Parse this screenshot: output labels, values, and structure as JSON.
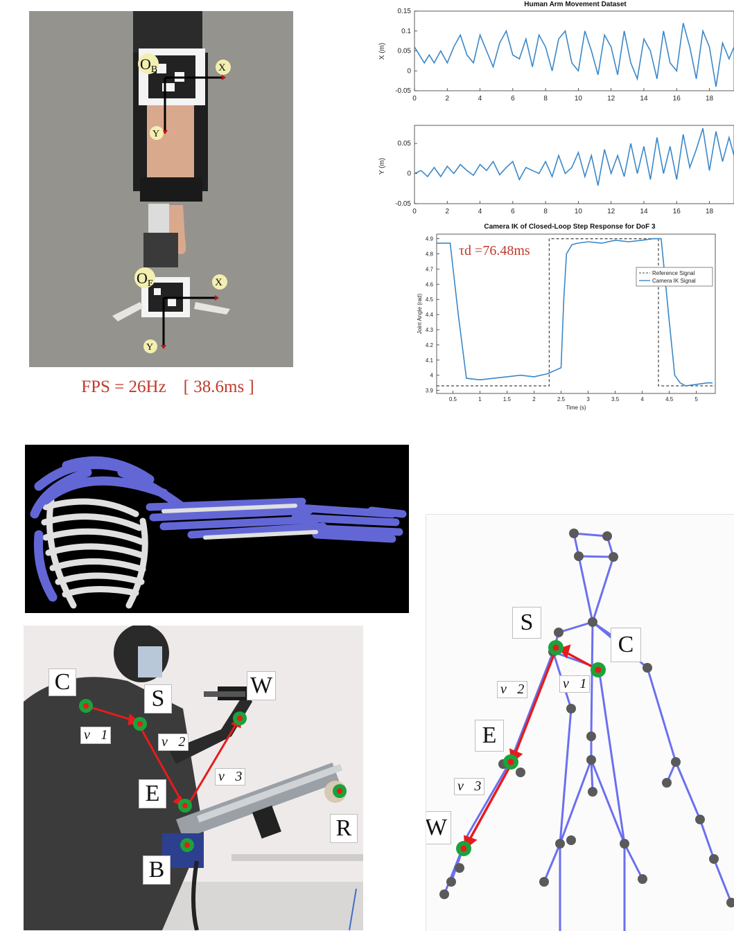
{
  "tracking_photo": {
    "labels": {
      "origin_b": "O",
      "origin_b_sub": "B",
      "origin_e": "O",
      "origin_e_sub": "E",
      "x_axis": "X",
      "y_axis": "Y"
    },
    "fps_caption": "FPS = 26Hz    [ 38.6ms ]"
  },
  "dataset_chart": {
    "title": "Human Arm Movement Dataset",
    "x_ticks": [
      "0",
      "2",
      "4",
      "6",
      "8",
      "10",
      "12",
      "14",
      "16",
      "18"
    ],
    "x_plot": {
      "ylabel": "X (m)",
      "y_ticks": [
        "0.15",
        "0.1",
        "0.05",
        "0",
        "-0.05"
      ]
    },
    "y_plot": {
      "ylabel": "Y (m)",
      "y_ticks": [
        "0.05",
        "0",
        "-0.05"
      ]
    }
  },
  "step_chart": {
    "title": "Camera IK of Closed-Loop Step Response for DoF 3",
    "ylabel": "Joint Angle (rad)",
    "xlabel": "Time (s)",
    "y_ticks": [
      "4.9",
      "4.8",
      "4.7",
      "4.6",
      "4.5",
      "4.4",
      "4.3",
      "4.2",
      "4.1",
      "4",
      "3.9"
    ],
    "x_ticks": [
      "0.5",
      "1",
      "1.5",
      "2",
      "2.5",
      "3",
      "3.5",
      "4",
      "4.5",
      "5"
    ],
    "annotation": "τd =76.48ms",
    "legend": [
      "Reference Signal",
      "Camera IK Signal"
    ]
  },
  "chart_data": [
    {
      "type": "line",
      "title": "Human Arm Movement Dataset",
      "xlabel": "",
      "ylabel": "X (m)",
      "xlim": [
        0,
        19.5
      ],
      "ylim": [
        -0.05,
        0.15
      ],
      "series": [
        {
          "x": [
            0,
            0.3,
            0.6,
            0.9,
            1.2,
            1.6,
            2.0,
            2.4,
            2.8,
            3.2,
            3.6,
            4.0,
            4.4,
            4.8,
            5.2,
            5.6,
            6.0,
            6.4,
            6.8,
            7.2,
            7.6,
            8.0,
            8.4,
            8.8,
            9.2,
            9.6,
            10.0,
            10.4,
            10.8,
            11.2,
            11.6,
            12.0,
            12.4,
            12.8,
            13.2,
            13.6,
            14.0,
            14.4,
            14.8,
            15.2,
            15.6,
            16.0,
            16.4,
            16.8,
            17.2,
            17.6,
            18.0,
            18.4,
            18.8,
            19.2,
            19.5
          ],
          "values": [
            0.06,
            0.04,
            0.02,
            0.04,
            0.02,
            0.05,
            0.02,
            0.06,
            0.09,
            0.04,
            0.02,
            0.09,
            0.05,
            0.01,
            0.07,
            0.1,
            0.04,
            0.03,
            0.08,
            0.01,
            0.09,
            0.06,
            0.0,
            0.08,
            0.1,
            0.02,
            0.0,
            0.1,
            0.05,
            -0.01,
            0.09,
            0.06,
            -0.01,
            0.1,
            0.02,
            -0.02,
            0.08,
            0.05,
            -0.02,
            0.1,
            0.02,
            0.0,
            0.12,
            0.06,
            -0.02,
            0.1,
            0.06,
            -0.04,
            0.07,
            0.03,
            0.06
          ]
        }
      ]
    },
    {
      "type": "line",
      "title": "",
      "xlabel": "",
      "ylabel": "Y (m)",
      "xlim": [
        0,
        19.5
      ],
      "ylim": [
        -0.05,
        0.08
      ],
      "series": [
        {
          "x": [
            0,
            0.4,
            0.8,
            1.2,
            1.6,
            2.0,
            2.4,
            2.8,
            3.2,
            3.6,
            4.0,
            4.4,
            4.8,
            5.2,
            5.6,
            6.0,
            6.4,
            6.8,
            7.2,
            7.6,
            8.0,
            8.4,
            8.8,
            9.2,
            9.6,
            10.0,
            10.4,
            10.8,
            11.2,
            11.6,
            12.0,
            12.4,
            12.8,
            13.2,
            13.6,
            14.0,
            14.4,
            14.8,
            15.2,
            15.6,
            16.0,
            16.4,
            16.8,
            17.2,
            17.6,
            18.0,
            18.4,
            18.8,
            19.2,
            19.5
          ],
          "values": [
            0.0,
            0.005,
            -0.005,
            0.01,
            -0.005,
            0.012,
            0.0,
            0.015,
            0.005,
            -0.003,
            0.015,
            0.005,
            0.02,
            -0.002,
            0.01,
            0.02,
            -0.01,
            0.01,
            0.005,
            0.0,
            0.02,
            -0.005,
            0.03,
            0.0,
            0.01,
            0.035,
            -0.005,
            0.03,
            -0.02,
            0.04,
            0.0,
            0.03,
            -0.005,
            0.05,
            0.0,
            0.045,
            -0.01,
            0.06,
            0.0,
            0.045,
            -0.01,
            0.065,
            0.01,
            0.04,
            0.075,
            0.005,
            0.07,
            0.02,
            0.06,
            0.03
          ]
        }
      ]
    },
    {
      "type": "line",
      "title": "Camera IK of Closed-Loop Step Response for DoF 3",
      "xlabel": "Time (s)",
      "ylabel": "Joint Angle (rad)",
      "xlim": [
        0.2,
        5.35
      ],
      "ylim": [
        3.88,
        4.93
      ],
      "series": [
        {
          "name": "Reference Signal",
          "x": [
            0.2,
            2.28,
            2.28,
            4.3,
            4.3,
            5.35
          ],
          "values": [
            3.93,
            3.93,
            4.9,
            4.9,
            3.93,
            3.93
          ]
        },
        {
          "name": "Camera IK Signal",
          "x": [
            0.2,
            0.35,
            0.36,
            0.45,
            0.6,
            0.75,
            1.0,
            1.25,
            1.5,
            1.75,
            2.0,
            2.25,
            2.5,
            2.55,
            2.6,
            2.7,
            2.8,
            3.0,
            3.25,
            3.5,
            3.75,
            4.0,
            4.2,
            4.35,
            4.5,
            4.6,
            4.7,
            4.8,
            5.0,
            5.2,
            5.3
          ],
          "values": [
            4.87,
            4.87,
            4.87,
            4.87,
            4.4,
            3.98,
            3.97,
            3.98,
            3.99,
            4.0,
            3.99,
            4.01,
            4.05,
            4.5,
            4.8,
            4.86,
            4.87,
            4.88,
            4.87,
            4.89,
            4.88,
            4.89,
            4.9,
            4.9,
            4.35,
            4.0,
            3.95,
            3.93,
            3.94,
            3.95,
            3.95
          ]
        }
      ]
    }
  ],
  "musculoskeletal_model": {},
  "robot_photo": {
    "labels": {
      "c": "C",
      "s": "S",
      "w": "W",
      "e": "E",
      "r": "R",
      "b": "B",
      "v1": "v⃗1",
      "v2": "v⃗2",
      "v3": "v⃗3"
    }
  },
  "skeleton_panel": {
    "labels": {
      "s": "S",
      "c": "C",
      "e": "E",
      "w": "W",
      "v1": "v⃗1",
      "v2": "v⃗2",
      "v3": "v⃗3"
    }
  },
  "colors": {
    "caption_red": "#c0392b",
    "vector_red": "#e51c1c",
    "joint_green": "#1aa33a",
    "skeleton_blue": "#6b6ff0",
    "muscle_blue": "#6367d6",
    "line_blue": "#3a87c8"
  }
}
